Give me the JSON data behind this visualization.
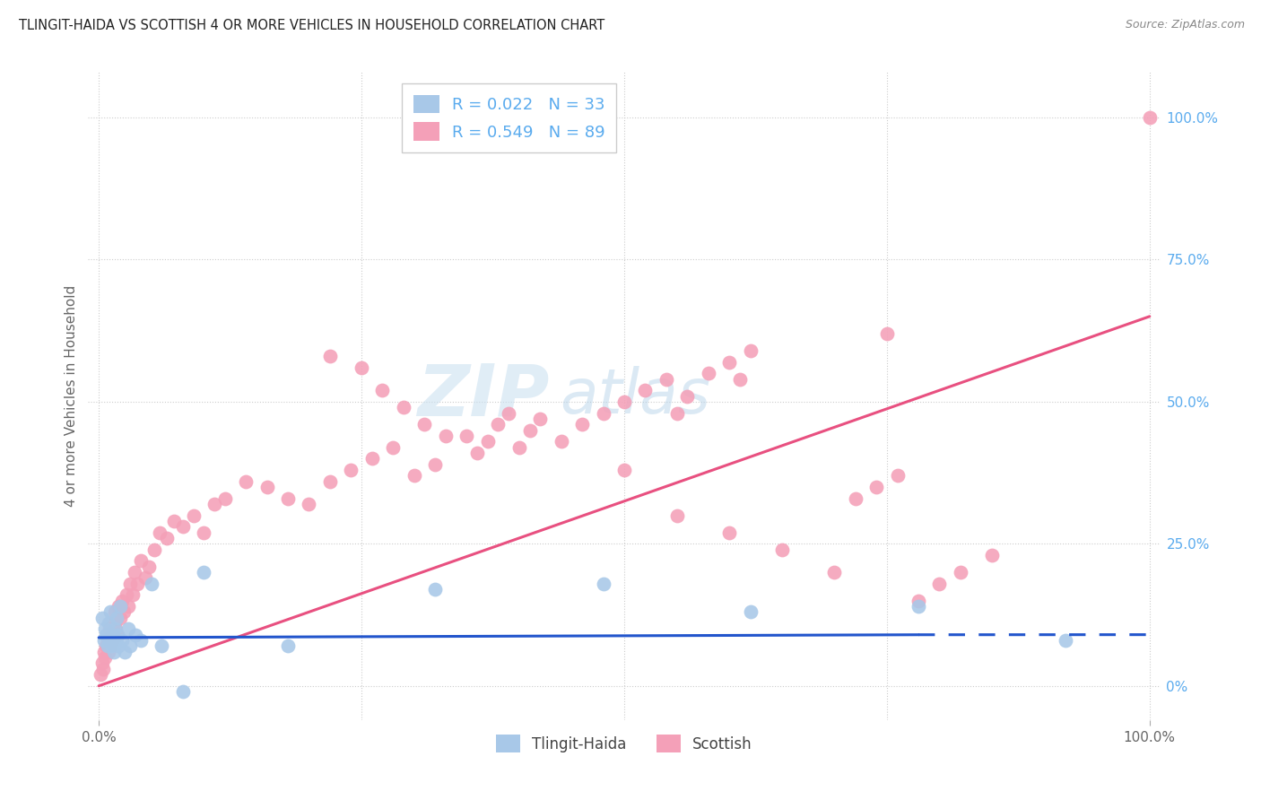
{
  "title": "TLINGIT-HAIDA VS SCOTTISH 4 OR MORE VEHICLES IN HOUSEHOLD CORRELATION CHART",
  "source": "Source: ZipAtlas.com",
  "ylabel": "4 or more Vehicles in Household",
  "xlim": [
    -0.01,
    1.01
  ],
  "ylim": [
    -0.06,
    1.08
  ],
  "R1": "0.022",
  "N1": 33,
  "R2": "0.549",
  "N2": 89,
  "legend_label_1": "Tlingit-Haida",
  "legend_label_2": "Scottish",
  "color_tlingit": "#a8c8e8",
  "color_scottish": "#f4a0b8",
  "color_trendline_tlingit": "#2255cc",
  "color_trendline_scottish": "#e85080",
  "color_axis_text": "#666666",
  "color_right_axis": "#5aabee",
  "color_grid": "#cccccc",
  "color_title": "#222222",
  "color_source": "#888888",
  "color_watermark": "#cce8f5",
  "watermark_zip": "ZIP",
  "watermark_atlas": "atlas",
  "tlingit_x": [
    0.003,
    0.005,
    0.006,
    0.007,
    0.008,
    0.009,
    0.01,
    0.011,
    0.012,
    0.013,
    0.014,
    0.015,
    0.016,
    0.017,
    0.018,
    0.019,
    0.02,
    0.022,
    0.025,
    0.028,
    0.03,
    0.035,
    0.04,
    0.05,
    0.06,
    0.08,
    0.1,
    0.18,
    0.32,
    0.48,
    0.62,
    0.78,
    0.92
  ],
  "tlingit_y": [
    0.12,
    0.08,
    0.1,
    0.09,
    0.07,
    0.11,
    0.08,
    0.13,
    0.07,
    0.09,
    0.06,
    0.1,
    0.08,
    0.12,
    0.09,
    0.07,
    0.14,
    0.08,
    0.06,
    0.1,
    0.07,
    0.09,
    0.08,
    0.18,
    0.07,
    -0.01,
    0.2,
    0.07,
    0.17,
    0.18,
    0.13,
    0.14,
    0.08
  ],
  "scottish_x": [
    0.002,
    0.003,
    0.004,
    0.005,
    0.006,
    0.007,
    0.008,
    0.009,
    0.01,
    0.011,
    0.012,
    0.013,
    0.014,
    0.015,
    0.016,
    0.017,
    0.018,
    0.019,
    0.02,
    0.022,
    0.024,
    0.026,
    0.028,
    0.03,
    0.032,
    0.034,
    0.037,
    0.04,
    0.044,
    0.048,
    0.053,
    0.058,
    0.065,
    0.072,
    0.08,
    0.09,
    0.1,
    0.11,
    0.12,
    0.14,
    0.16,
    0.18,
    0.2,
    0.22,
    0.24,
    0.26,
    0.28,
    0.3,
    0.32,
    0.35,
    0.37,
    0.38,
    0.39,
    0.4,
    0.41,
    0.42,
    0.44,
    0.46,
    0.48,
    0.5,
    0.52,
    0.54,
    0.55,
    0.56,
    0.58,
    0.6,
    0.61,
    0.62,
    0.22,
    0.25,
    0.27,
    0.29,
    0.31,
    0.33,
    0.36,
    0.5,
    0.55,
    0.6,
    0.65,
    0.7,
    0.72,
    0.74,
    0.76,
    0.78,
    0.8,
    0.82,
    0.85,
    0.75,
    1.0
  ],
  "scottish_y": [
    0.02,
    0.04,
    0.03,
    0.06,
    0.05,
    0.07,
    0.08,
    0.06,
    0.1,
    0.07,
    0.09,
    0.08,
    0.11,
    0.13,
    0.1,
    0.12,
    0.09,
    0.14,
    0.12,
    0.15,
    0.13,
    0.16,
    0.14,
    0.18,
    0.16,
    0.2,
    0.18,
    0.22,
    0.19,
    0.21,
    0.24,
    0.27,
    0.26,
    0.29,
    0.28,
    0.3,
    0.27,
    0.32,
    0.33,
    0.36,
    0.35,
    0.33,
    0.32,
    0.36,
    0.38,
    0.4,
    0.42,
    0.37,
    0.39,
    0.44,
    0.43,
    0.46,
    0.48,
    0.42,
    0.45,
    0.47,
    0.43,
    0.46,
    0.48,
    0.5,
    0.52,
    0.54,
    0.48,
    0.51,
    0.55,
    0.57,
    0.54,
    0.59,
    0.58,
    0.56,
    0.52,
    0.49,
    0.46,
    0.44,
    0.41,
    0.38,
    0.3,
    0.27,
    0.24,
    0.2,
    0.33,
    0.35,
    0.37,
    0.15,
    0.18,
    0.2,
    0.23,
    0.62,
    1.0
  ],
  "trendline_sc_x0": 0.0,
  "trendline_sc_y0": 0.0,
  "trendline_sc_x1": 1.0,
  "trendline_sc_y1": 0.65,
  "trendline_th_x0": 0.0,
  "trendline_th_y0": 0.085,
  "trendline_th_x1": 0.78,
  "trendline_th_y1": 0.09,
  "trendline_th_dash_x0": 0.78,
  "trendline_th_dash_x1": 1.0
}
